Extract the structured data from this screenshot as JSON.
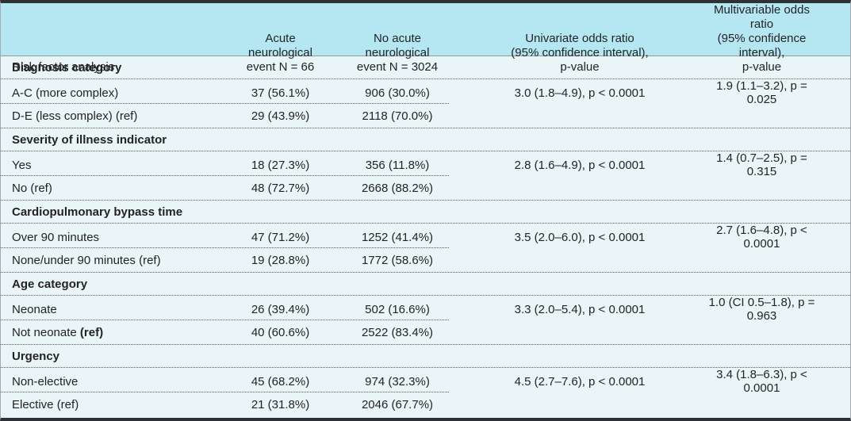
{
  "colors": {
    "header_background": "#b5e7f3",
    "body_background": "#eaf5f7",
    "top_bottom_border": "#2e3237",
    "dotted_rule": "#5a5a5a",
    "header_rule": "#8f999e",
    "text": "#232323"
  },
  "table": {
    "header": {
      "col1": "Risk factor analysis",
      "col2": [
        "Acute",
        "neurological",
        "event N = 66"
      ],
      "col3": [
        "No acute",
        "neurological",
        "event N = 3024"
      ],
      "col4": [
        "Univariate odds ratio",
        "(95% confidence interval),",
        "p-value"
      ],
      "col5": [
        "Multivariable odds ratio",
        "(95% confidence interval),",
        "p-value"
      ]
    },
    "groups": [
      {
        "title": "Diagnosis category",
        "rows": [
          {
            "label": "A-C (more complex)",
            "label_bold": "",
            "acute": "37 (56.1%)",
            "no_acute": "906 (30.0%)",
            "univariate": "3.0 (1.8–4.9), p < 0.0001",
            "multivariable": "1.9 (1.1–3.2), p = 0.025"
          },
          {
            "label": "D-E (less complex) (ref)",
            "label_bold": "",
            "acute": "29 (43.9%)",
            "no_acute": "2118 (70.0%)",
            "univariate": "",
            "multivariable": ""
          }
        ]
      },
      {
        "title": "Severity of illness indicator",
        "rows": [
          {
            "label": "Yes",
            "label_bold": "",
            "acute": "18 (27.3%)",
            "no_acute": "356 (11.8%)",
            "univariate": "2.8 (1.6–4.9), p < 0.0001",
            "multivariable": "1.4 (0.7–2.5), p = 0.315"
          },
          {
            "label": "No (ref)",
            "label_bold": "",
            "acute": "48 (72.7%)",
            "no_acute": "2668 (88.2%)",
            "univariate": "",
            "multivariable": ""
          }
        ]
      },
      {
        "title": "Cardiopulmonary bypass time",
        "rows": [
          {
            "label": "Over 90 minutes",
            "label_bold": "",
            "acute": "47 (71.2%)",
            "no_acute": "1252 (41.4%)",
            "univariate": "3.5 (2.0–6.0), p < 0.0001",
            "multivariable": "2.7 (1.6–4.8), p < 0.0001"
          },
          {
            "label": "None/under 90 minutes (ref)",
            "label_bold": "",
            "acute": "19 (28.8%)",
            "no_acute": "1772 (58.6%)",
            "univariate": "",
            "multivariable": ""
          }
        ]
      },
      {
        "title": "Age category",
        "rows": [
          {
            "label": "Neonate",
            "label_bold": "",
            "acute": "26 (39.4%)",
            "no_acute": "502 (16.6%)",
            "univariate": "3.3 (2.0–5.4), p < 0.0001",
            "multivariable": "1.0 (CI 0.5–1.8), p = 0.963"
          },
          {
            "label": "Not neonate ",
            "label_bold": "(ref)",
            "acute": "40 (60.6%)",
            "no_acute": "2522 (83.4%)",
            "univariate": "",
            "multivariable": ""
          }
        ]
      },
      {
        "title": "Urgency",
        "rows": [
          {
            "label": "Non-elective",
            "label_bold": "",
            "acute": "45 (68.2%)",
            "no_acute": "974 (32.3%)",
            "univariate": "4.5 (2.7–7.6), p < 0.0001",
            "multivariable": "3.4 (1.8–6.3), p < 0.0001"
          },
          {
            "label": "Elective (ref)",
            "label_bold": "",
            "acute": "21 (31.8%)",
            "no_acute": "2046 (67.7%)",
            "univariate": "",
            "multivariable": ""
          }
        ]
      }
    ]
  }
}
